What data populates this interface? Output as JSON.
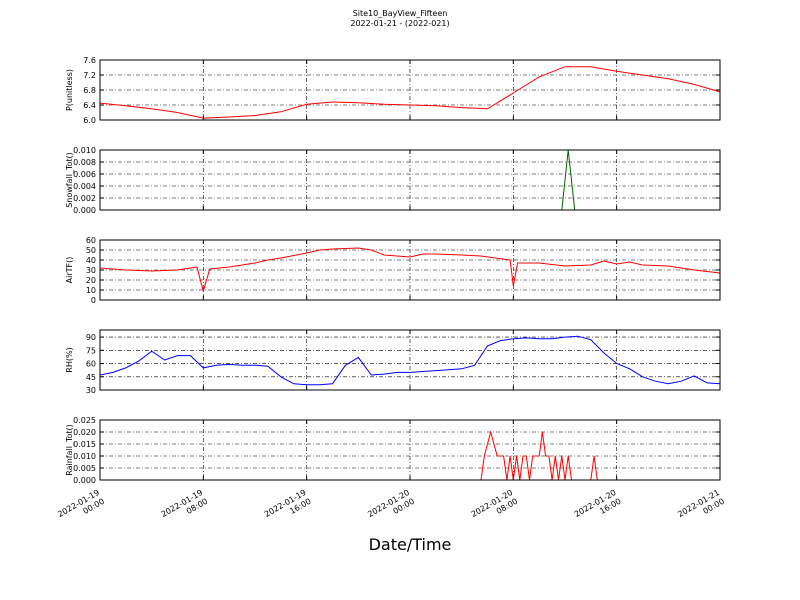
{
  "figure": {
    "title": "Site10_BayView_Fifteen",
    "subtitle": "2022-01-21 - (2022-021)",
    "xlabel": "Date/Time",
    "xlim": [
      "2022-01-19 00:00",
      "2022-01-21 00:00"
    ],
    "xticks": [
      "2022-01-19 00:00",
      "2022-01-19 08:00",
      "2022-01-19 16:00",
      "2022-01-20 00:00",
      "2022-01-20 08:00",
      "2022-01-20 16:00",
      "2022-01-21 00:00"
    ]
  },
  "chart_data": [
    {
      "type": "line",
      "ylabel": "P(unitless)",
      "color": "#ff0000",
      "grid": true,
      "ylim": [
        6.0,
        7.6
      ],
      "yticks": [
        {
          "value": 6.0,
          "label": "6.0"
        },
        6.4,
        6.8,
        7.2,
        7.6
      ],
      "x": [
        "2022-01-19 00:00",
        "2022-01-19 02:00",
        "2022-01-19 04:00",
        "2022-01-19 06:00",
        "2022-01-19 08:00",
        "2022-01-19 10:00",
        "2022-01-19 12:00",
        "2022-01-19 14:00",
        "2022-01-19 16:00",
        "2022-01-19 18:00",
        "2022-01-19 20:00",
        "2022-01-19 22:00",
        "2022-01-20 00:00",
        "2022-01-20 02:00",
        "2022-01-20 04:00",
        "2022-01-20 06:00",
        "2022-01-20 08:00",
        "2022-01-20 10:00",
        "2022-01-20 12:00",
        "2022-01-20 14:00",
        "2022-01-20 16:00",
        "2022-01-20 18:00",
        "2022-01-20 20:00",
        "2022-01-20 22:00",
        "2022-01-21 00:00"
      ],
      "values": [
        6.45,
        6.38,
        6.3,
        6.2,
        6.05,
        6.08,
        6.12,
        6.22,
        6.42,
        6.48,
        6.46,
        6.42,
        6.4,
        6.38,
        6.33,
        6.3,
        6.72,
        7.15,
        7.42,
        7.42,
        7.3,
        7.2,
        7.1,
        6.95,
        6.75
      ]
    },
    {
      "type": "line",
      "ylabel": "Snowfall_Tot()",
      "color": "#006400",
      "grid": true,
      "ylim": [
        0,
        0.01
      ],
      "yticks": [
        {
          "value": 0,
          "label": "0.000"
        },
        0.002,
        0.004,
        0.006,
        0.008,
        {
          "value": 0.01,
          "label": "0.010"
        }
      ],
      "x": [
        "2022-01-19 00:00",
        "2022-01-20 11:45",
        "2022-01-20 12:15",
        "2022-01-20 12:45",
        "2022-01-21 00:00"
      ],
      "values": [
        0,
        0,
        0.01,
        0,
        0
      ]
    },
    {
      "type": "line",
      "ylabel": "AirTF()",
      "color": "#ff0000",
      "grid": true,
      "ylim": [
        0,
        60
      ],
      "yticks": [
        0,
        10,
        20,
        30,
        40,
        50,
        60
      ],
      "x": [
        "2022-01-19 00:00",
        "2022-01-19 02:00",
        "2022-01-19 04:00",
        "2022-01-19 06:00",
        "2022-01-19 07:30",
        "2022-01-19 08:00",
        "2022-01-19 08:30",
        "2022-01-19 10:00",
        "2022-01-19 12:00",
        "2022-01-19 13:00",
        "2022-01-19 14:00",
        "2022-01-19 16:00",
        "2022-01-19 17:00",
        "2022-01-19 18:00",
        "2022-01-19 20:00",
        "2022-01-19 21:00",
        "2022-01-19 22:00",
        "2022-01-20 00:00",
        "2022-01-20 01:00",
        "2022-01-20 02:00",
        "2022-01-20 04:00",
        "2022-01-20 05:30",
        "2022-01-20 07:45",
        "2022-01-20 08:00",
        "2022-01-20 08:20",
        "2022-01-20 10:00",
        "2022-01-20 12:00",
        "2022-01-20 14:00",
        "2022-01-20 15:00",
        "2022-01-20 16:00",
        "2022-01-20 17:00",
        "2022-01-20 18:00",
        "2022-01-20 20:00",
        "2022-01-20 22:00",
        "2022-01-21 00:00"
      ],
      "values": [
        32,
        30,
        29,
        30,
        33,
        9,
        31,
        33,
        37,
        40,
        42,
        47,
        50,
        51,
        52,
        50,
        45,
        43,
        46,
        46,
        45,
        44,
        40,
        14,
        37,
        37,
        34,
        35,
        39,
        36,
        38,
        35,
        34,
        30,
        27
      ]
    },
    {
      "type": "line",
      "ylabel": "RH(%)",
      "color": "#0000ff",
      "grid": true,
      "ylim": [
        30,
        98
      ],
      "yticks": [
        30,
        45,
        60,
        75,
        90
      ],
      "x": [
        "2022-01-19 00:00",
        "2022-01-19 01:00",
        "2022-01-19 02:00",
        "2022-01-19 03:00",
        "2022-01-19 04:00",
        "2022-01-19 05:00",
        "2022-01-19 06:00",
        "2022-01-19 07:00",
        "2022-01-19 08:00",
        "2022-01-19 09:00",
        "2022-01-19 10:00",
        "2022-01-19 11:00",
        "2022-01-19 12:00",
        "2022-01-19 13:00",
        "2022-01-19 14:00",
        "2022-01-19 15:00",
        "2022-01-19 16:00",
        "2022-01-19 17:00",
        "2022-01-19 18:00",
        "2022-01-19 19:00",
        "2022-01-19 20:00",
        "2022-01-19 21:00",
        "2022-01-19 22:00",
        "2022-01-19 23:00",
        "2022-01-20 00:00",
        "2022-01-20 01:00",
        "2022-01-20 02:00",
        "2022-01-20 03:00",
        "2022-01-20 04:00",
        "2022-01-20 05:00",
        "2022-01-20 06:00",
        "2022-01-20 07:00",
        "2022-01-20 08:00",
        "2022-01-20 09:00",
        "2022-01-20 10:00",
        "2022-01-20 11:00",
        "2022-01-20 12:00",
        "2022-01-20 13:00",
        "2022-01-20 14:00",
        "2022-01-20 15:00",
        "2022-01-20 16:00",
        "2022-01-20 17:00",
        "2022-01-20 18:00",
        "2022-01-20 19:00",
        "2022-01-20 20:00",
        "2022-01-20 21:00",
        "2022-01-20 22:00",
        "2022-01-20 23:00",
        "2022-01-21 00:00"
      ],
      "values": [
        47,
        50,
        55,
        63,
        74,
        64,
        69,
        69,
        55,
        58,
        59,
        58,
        58,
        57,
        45,
        37,
        36,
        36,
        37,
        58,
        67,
        47,
        48,
        50,
        50,
        51,
        52,
        53,
        54,
        58,
        80,
        86,
        88,
        89,
        88,
        88,
        90,
        91,
        87,
        72,
        60,
        54,
        45,
        40,
        37,
        40,
        46,
        38,
        37
      ]
    },
    {
      "type": "line",
      "ylabel": "Rainfall_Tot()",
      "color": "#ff0000",
      "grid": true,
      "ylim": [
        0,
        0.025
      ],
      "yticks": [
        {
          "value": 0,
          "label": "0.000"
        },
        0.005,
        {
          "value": 0.01,
          "label": "0.010"
        },
        0.015,
        {
          "value": 0.02,
          "label": "0.020"
        },
        0.025
      ],
      "x": [
        "2022-01-19 00:00",
        "2022-01-20 05:30",
        "2022-01-20 05:45",
        "2022-01-20 06:15",
        "2022-01-20 06:45",
        "2022-01-20 07:15",
        "2022-01-20 07:30",
        "2022-01-20 07:45",
        "2022-01-20 08:00",
        "2022-01-20 08:15",
        "2022-01-20 08:30",
        "2022-01-20 08:45",
        "2022-01-20 09:00",
        "2022-01-20 09:15",
        "2022-01-20 09:30",
        "2022-01-20 10:00",
        "2022-01-20 10:15",
        "2022-01-20 10:30",
        "2022-01-20 10:45",
        "2022-01-20 11:00",
        "2022-01-20 11:15",
        "2022-01-20 11:30",
        "2022-01-20 11:45",
        "2022-01-20 12:00",
        "2022-01-20 12:15",
        "2022-01-20 12:30",
        "2022-01-20 14:00",
        "2022-01-20 14:15",
        "2022-01-20 14:30",
        "2022-01-21 00:00"
      ],
      "values": [
        0,
        0,
        0.01,
        0.02,
        0.01,
        0.01,
        0,
        0.01,
        0,
        0.01,
        0,
        0.01,
        0.01,
        0,
        0.01,
        0.01,
        0.02,
        0.01,
        0.01,
        0,
        0.01,
        0,
        0.01,
        0,
        0.01,
        0,
        0,
        0.01,
        0,
        0
      ]
    }
  ]
}
